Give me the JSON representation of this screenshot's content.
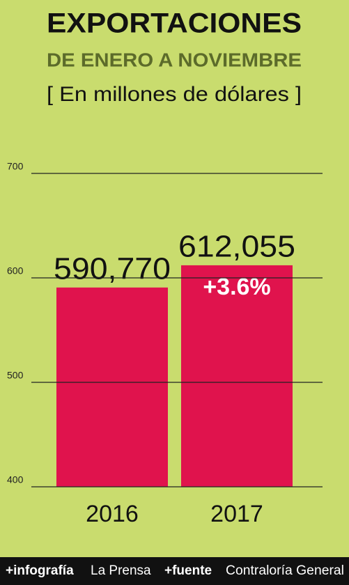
{
  "chart_data": {
    "type": "bar",
    "title": "EXPORTACIONES",
    "subtitle": "DE ENERO A NOVIEMBRE",
    "unit_label": "[ En millones de dólares ]",
    "categories": [
      "2016",
      "2017"
    ],
    "values": [
      590.77,
      612.055
    ],
    "value_labels": [
      "590,770",
      "612,055"
    ],
    "annotation": "+3.6%",
    "color": "#e0134d",
    "ylim": [
      400,
      700
    ],
    "yticks": [
      400,
      500,
      600,
      700
    ],
    "grid": true,
    "footer": {
      "credit_label": "+infografía",
      "credit": "La Prensa",
      "source_label": "+fuente",
      "source": "Contraloría General"
    }
  }
}
